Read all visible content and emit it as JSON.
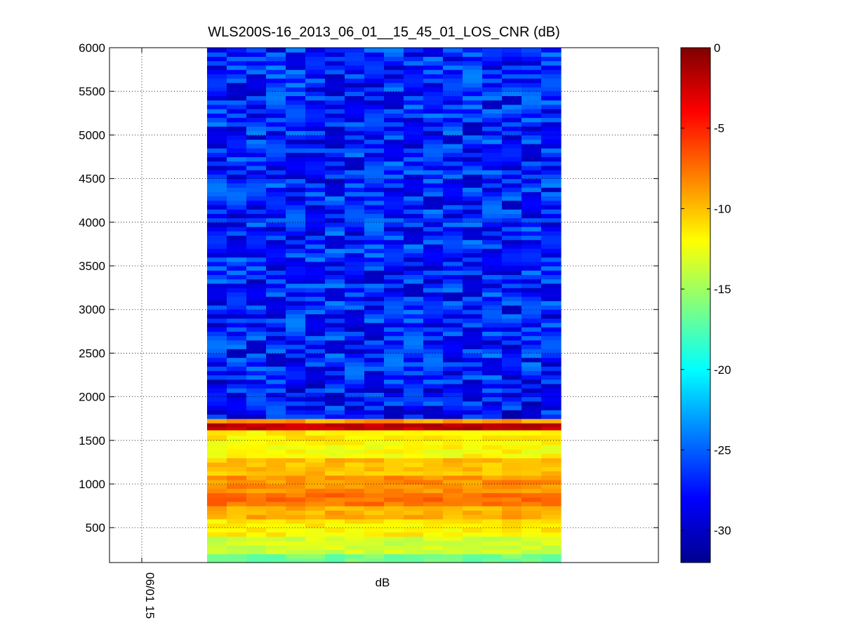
{
  "chart_data": {
    "type": "heatmap",
    "title": "WLS200S-16_2013_06_01__15_45_01_LOS_CNR (dB)",
    "xlabel": "dB",
    "ylabel": "",
    "x_tick_labels": [
      "06/01 15"
    ],
    "y_ticks": [
      500,
      1000,
      1500,
      2000,
      2500,
      3000,
      3500,
      4000,
      4500,
      5000,
      5500,
      6000
    ],
    "ylim": [
      100,
      6000
    ],
    "grid": true,
    "colormap": "jet",
    "colorbar": {
      "range": [
        -32,
        0
      ],
      "ticks": [
        0,
        -5,
        -10,
        -15,
        -20,
        -25,
        -30
      ],
      "tick_labels": [
        "0",
        "-5",
        "-10",
        "-15",
        "-20",
        "-25",
        "-30"
      ]
    },
    "num_time_columns": 18,
    "cnr_profile_by_altitude": [
      {
        "range": [
          100,
          200
        ],
        "cnr_db": -16.5
      },
      {
        "range": [
          200,
          400
        ],
        "cnr_db": -13.5
      },
      {
        "range": [
          400,
          600
        ],
        "cnr_db": -11.5
      },
      {
        "range": [
          600,
          750
        ],
        "cnr_db": -9.5
      },
      {
        "range": [
          750,
          900
        ],
        "cnr_db": -7.5
      },
      {
        "range": [
          900,
          1100
        ],
        "cnr_db": -8.5
      },
      {
        "range": [
          1100,
          1300
        ],
        "cnr_db": -10.0
      },
      {
        "range": [
          1300,
          1500
        ],
        "cnr_db": -12.0
      },
      {
        "range": [
          1500,
          1620
        ],
        "cnr_db": -11.5
      },
      {
        "range": [
          1620,
          1700
        ],
        "cnr_db": -2.0
      },
      {
        "range": [
          1700,
          1750
        ],
        "cnr_db": -9.0
      },
      {
        "range": [
          1750,
          2200
        ],
        "cnr_db": -27.5
      },
      {
        "range": [
          2200,
          6000
        ],
        "cnr_db": -27.0
      }
    ]
  }
}
